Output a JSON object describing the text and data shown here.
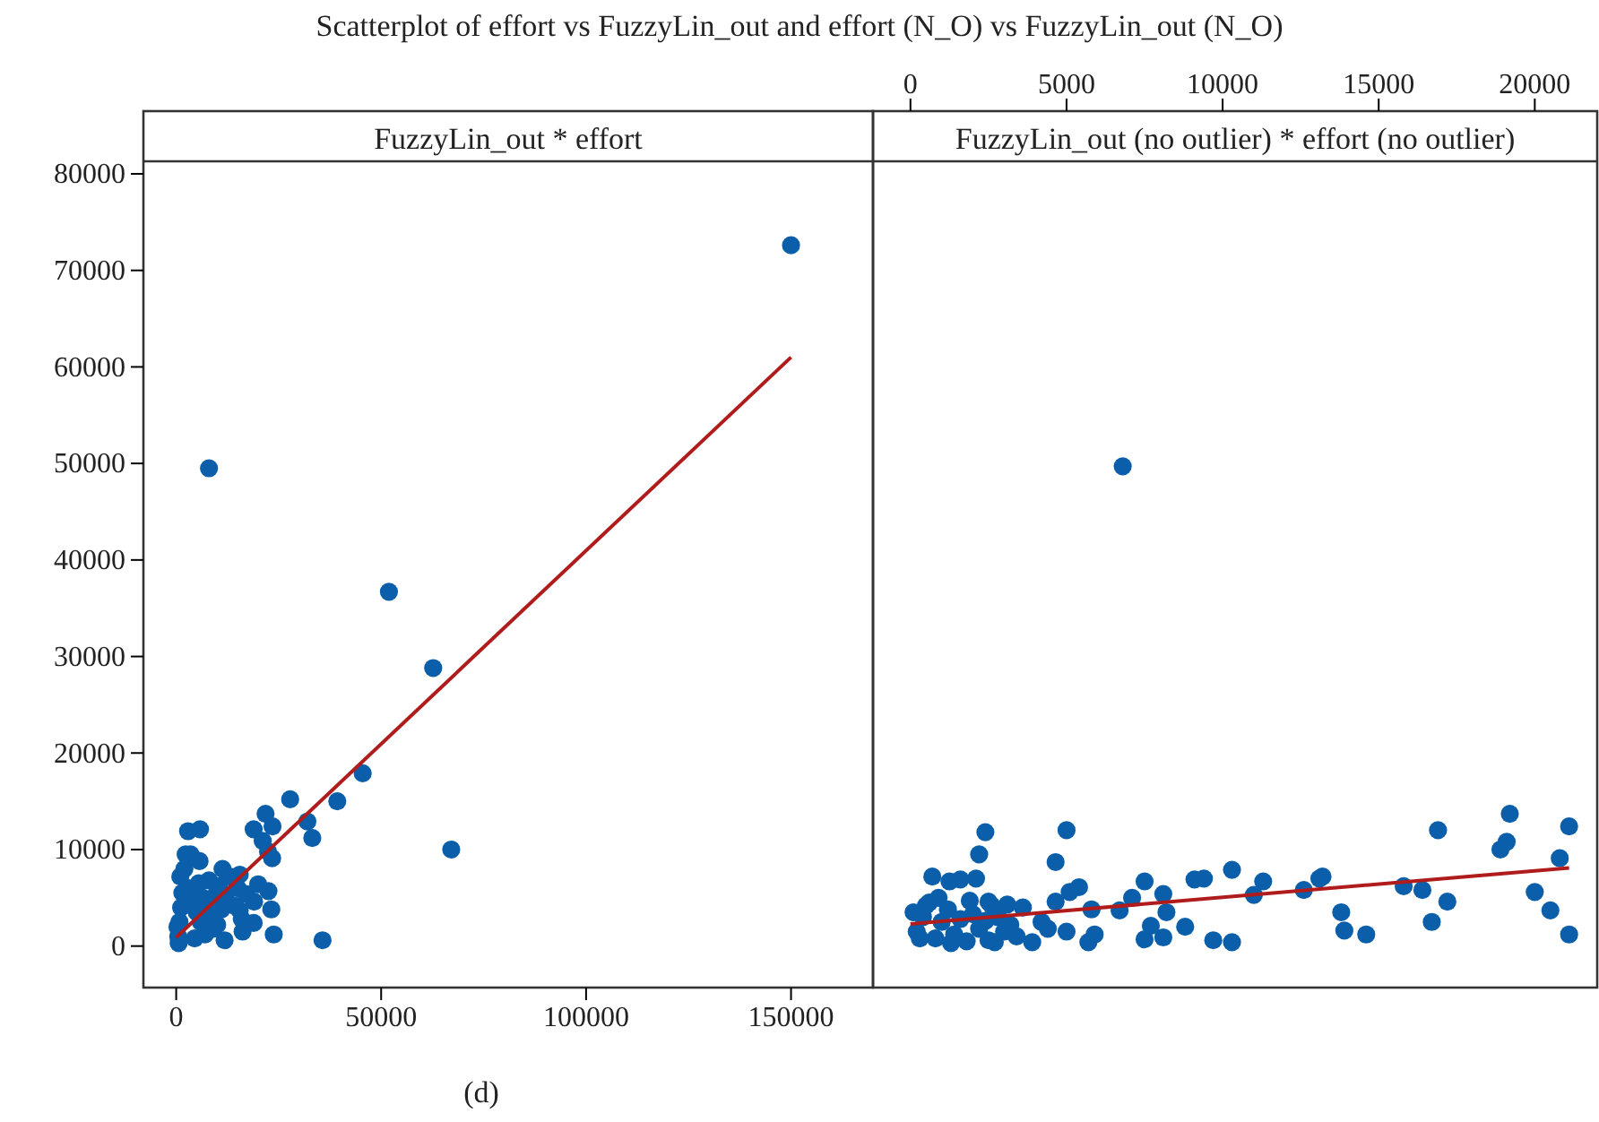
{
  "chart_data": [
    {
      "type": "scatter",
      "title": "Scatterplot of effort vs FuzzyLin_out and effort (N_O) vs FuzzyLin_out (N_O)",
      "subtitle": "FuzzyLin_out * effort",
      "annotations": [
        "(d)"
      ],
      "marker": "circle",
      "grid": false,
      "xlim": [
        -8000,
        170000
      ],
      "xticks": [
        0,
        50000,
        100000,
        150000
      ],
      "ylim": [
        -4300,
        81300
      ],
      "yticks": [
        0,
        10000,
        20000,
        30000,
        40000,
        50000,
        60000,
        70000,
        80000
      ],
      "series": [
        {
          "color": "#0b5faa",
          "x": [
            150000,
            8000,
            51900,
            62700,
            45500,
            67100,
            39300,
            27800,
            21800,
            23500,
            18900,
            32000,
            33200,
            21100,
            22400,
            23400,
            5800,
            2900,
            2300,
            5700,
            11300,
            15500,
            22500,
            15500,
            23200,
            18900,
            16200,
            23800,
            35700,
            11800,
            500,
            800,
            1200,
            1500,
            3000,
            4000,
            4500,
            5000,
            5500,
            6000,
            6500,
            7000,
            7500,
            8000,
            8500,
            9000,
            9500,
            10000,
            10500,
            11000,
            12000,
            13000,
            14000,
            15000,
            16000,
            17000,
            19000,
            20000,
            600,
            1000,
            2000,
            3500,
            300
          ],
          "values": [
            72600,
            49500,
            36700,
            28800,
            17900,
            10000,
            15000,
            15200,
            13700,
            12400,
            12100,
            12900,
            11200,
            10900,
            9800,
            9100,
            12100,
            11900,
            9500,
            8800,
            8000,
            7400,
            5700,
            3700,
            3800,
            2400,
            1500,
            1200,
            600,
            600,
            1000,
            2500,
            4000,
            5500,
            6000,
            4500,
            800,
            3500,
            6500,
            2500,
            5000,
            1200,
            4000,
            6800,
            3000,
            1800,
            5200,
            2200,
            6200,
            3800,
            5000,
            7200,
            4200,
            6000,
            2800,
            5400,
            4600,
            6400,
            300,
            7200,
            8000,
            9500,
            2000
          ]
        },
        {
          "type": "line",
          "marker": "none",
          "color": "#b01c1c",
          "x": [
            0,
            150000
          ],
          "values": [
            900,
            61000
          ]
        }
      ]
    },
    {
      "type": "scatter",
      "title": "FuzzyLin_out (no outlier) * effort (no outlier)",
      "marker": "circle",
      "grid": false,
      "tick_labels": "x",
      "xlim": [
        -1200,
        22000
      ],
      "xticks": [
        0,
        5000,
        10000,
        15000,
        20000
      ],
      "ylim": [
        -4300,
        81300
      ],
      "series": [
        {
          "color": "#0b5faa",
          "x": [
            6800,
            2400,
            5000,
            2200,
            4650,
            700,
            1250,
            1600,
            2100,
            5400,
            5100,
            7500,
            9100,
            9400,
            10300,
            11300,
            11000,
            12600,
            13100,
            13200,
            15800,
            16400,
            17200,
            16900,
            16700,
            19200,
            19100,
            18900,
            21100,
            20800,
            20000,
            20500,
            21100,
            13800,
            13900,
            14600,
            10300,
            9700,
            8800,
            8200,
            8100,
            7700,
            7500,
            8100,
            7100,
            6700,
            5800,
            5900,
            5700,
            4650,
            5000,
            3900,
            2500,
            2700,
            3600,
            3100,
            2500,
            1900,
            200,
            400,
            600,
            800,
            1000,
            1200,
            1400,
            1600,
            1800,
            2000,
            2200,
            2400,
            2800,
            3000,
            3200,
            3400,
            500,
            100,
            900,
            1300,
            2600,
            300,
            4200,
            4400
          ],
          "values": [
            49700,
            11800,
            12000,
            9500,
            8700,
            7200,
            6700,
            6900,
            7000,
            6100,
            5600,
            6700,
            6900,
            7000,
            7900,
            6700,
            5300,
            5800,
            7000,
            7200,
            6200,
            5800,
            4600,
            12000,
            2500,
            13700,
            10800,
            10000,
            12400,
            9100,
            5600,
            3700,
            1200,
            3500,
            1600,
            1200,
            400,
            600,
            2000,
            3500,
            5400,
            2100,
            700,
            900,
            5000,
            3700,
            3800,
            1200,
            400,
            4600,
            1500,
            400,
            600,
            400,
            4000,
            4300,
            4600,
            4700,
            1500,
            3000,
            4500,
            800,
            2500,
            3800,
            1200,
            2800,
            500,
            3300,
            1800,
            2600,
            3000,
            1500,
            2200,
            1000,
            4200,
            3500,
            5000,
            300,
            4200,
            800,
            2500,
            1800
          ]
        },
        {
          "type": "line",
          "marker": "none",
          "color": "#b01c1c",
          "x": [
            0,
            21100
          ],
          "values": [
            2300,
            8100
          ]
        }
      ]
    }
  ]
}
